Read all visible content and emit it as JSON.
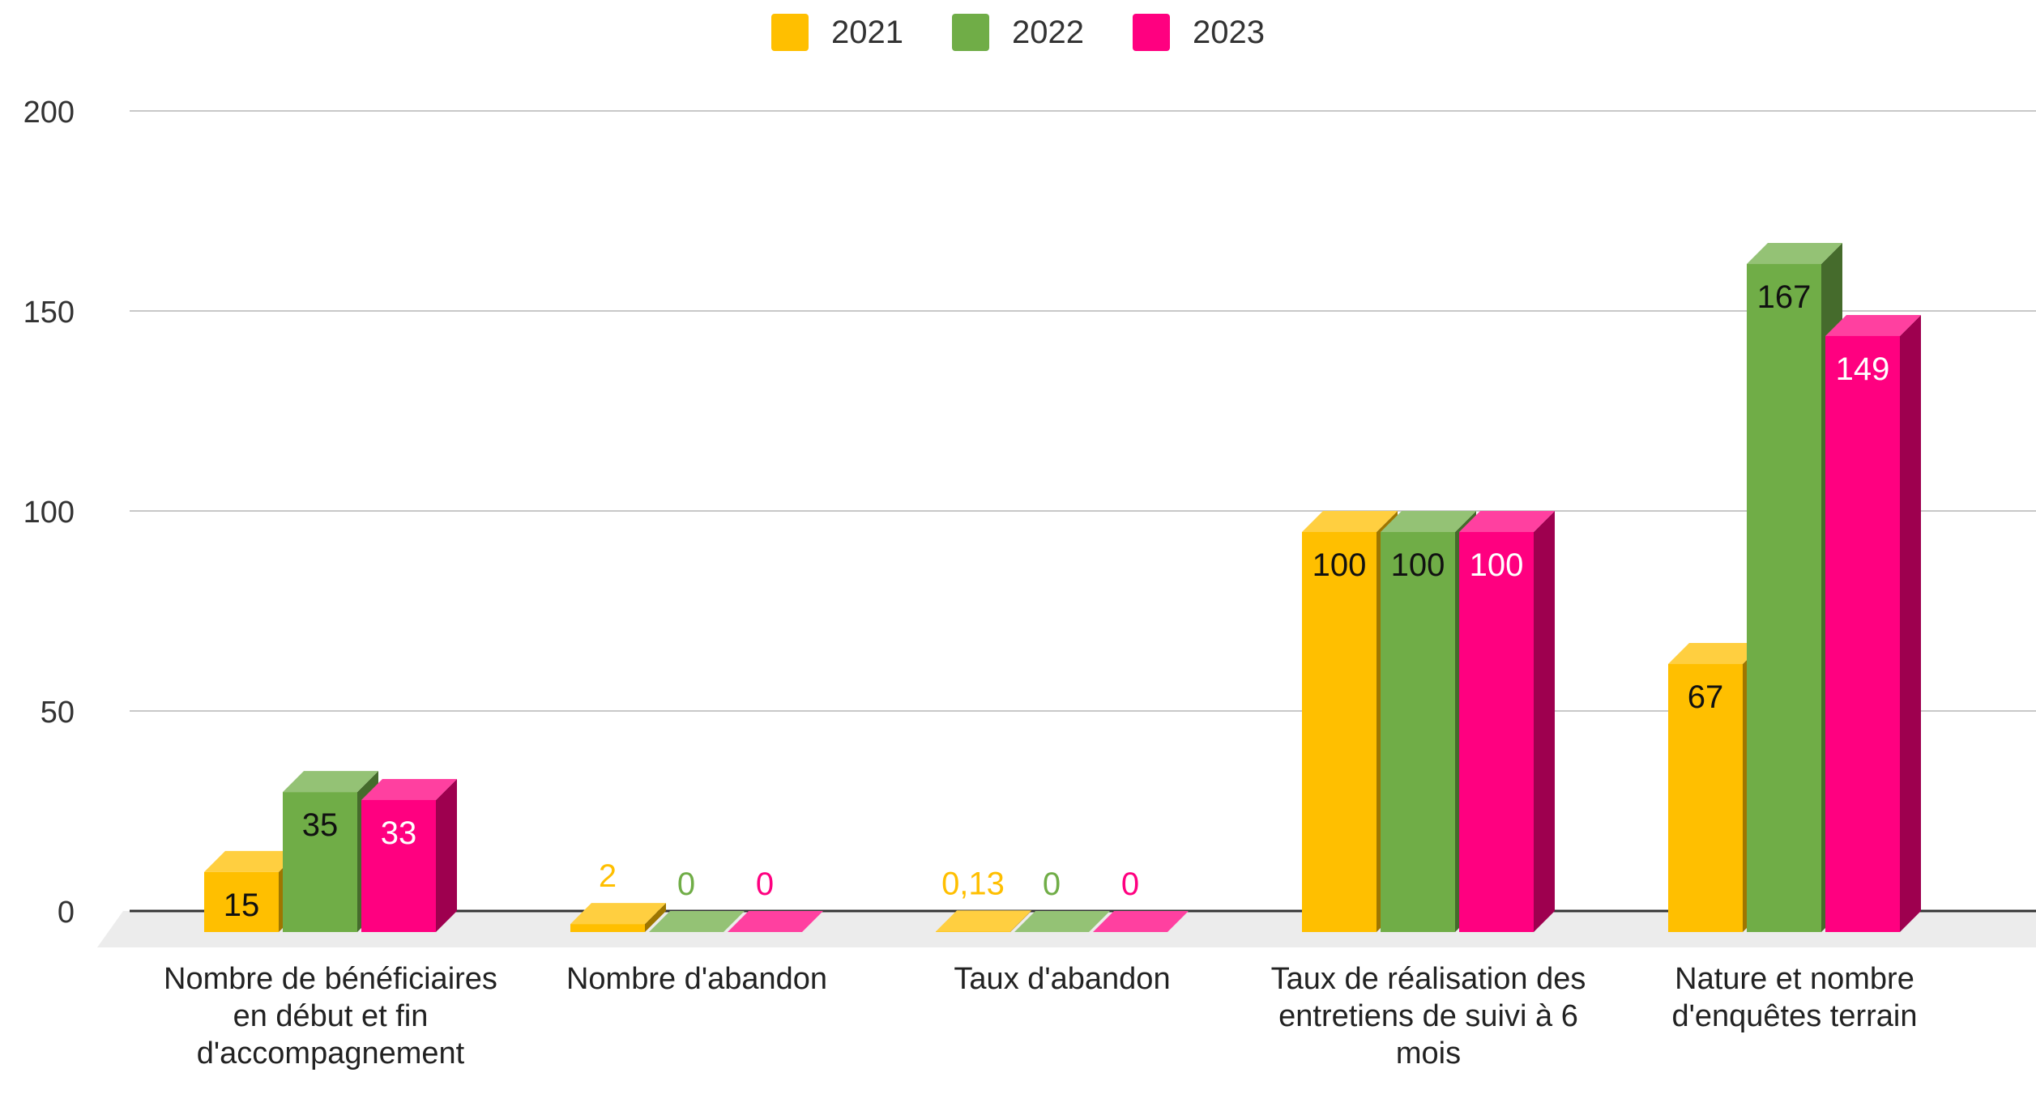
{
  "chart_data": {
    "type": "bar",
    "style": "3d-clustered-column",
    "categories": [
      "Nombre de bénéficiaires en début et fin d'accompagnement",
      "Nombre d'abandon",
      "Taux d'abandon",
      "Taux de réalisation des entretiens de suivi à 6 mois",
      "Nature et nombre d'enquêtes terrain"
    ],
    "series": [
      {
        "name": "2021",
        "values": [
          15,
          2,
          0.13,
          100,
          67
        ],
        "labels": [
          "15",
          "2",
          "0,13",
          "100",
          "67"
        ],
        "color": "#FFBF00"
      },
      {
        "name": "2022",
        "values": [
          35,
          0,
          0,
          100,
          167
        ],
        "labels": [
          "35",
          "0",
          "0",
          "100",
          "167"
        ],
        "color": "#70AD47"
      },
      {
        "name": "2023",
        "values": [
          33,
          0,
          0,
          100,
          149
        ],
        "labels": [
          "33",
          "0",
          "0",
          "100",
          "149"
        ],
        "color": "#FF0080"
      }
    ],
    "yticks": [
      "0",
      "50",
      "100",
      "150",
      "200"
    ],
    "ylim": [
      0,
      200
    ],
    "grid": true,
    "legend": "top-center"
  }
}
